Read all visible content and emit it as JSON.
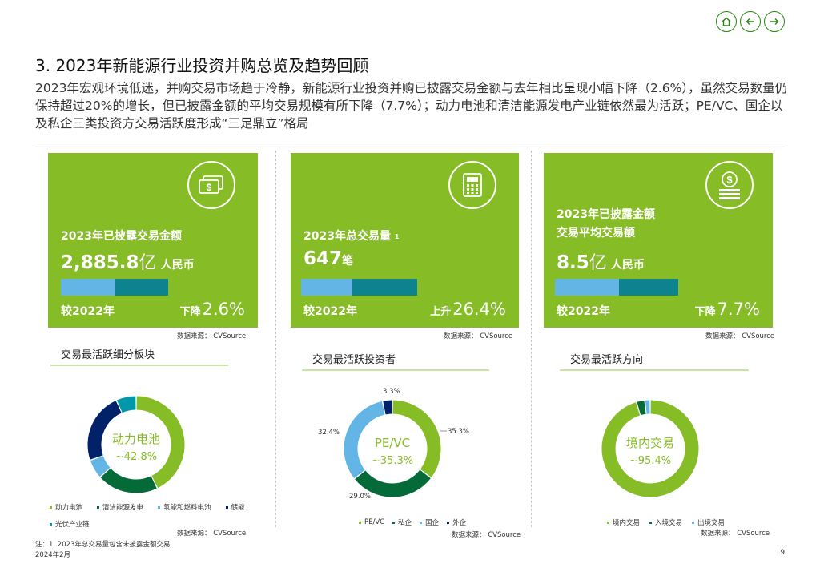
{
  "colors": {
    "green": "#86bc25",
    "dark_green": "#26890d",
    "darker_green": "#046a38",
    "light_blue": "#62b5e5",
    "teal": "#0d8390",
    "navy": "#012169",
    "bar_teal": "#0097a9"
  },
  "nav": {
    "home_icon": "home-icon",
    "back_icon": "arrow-left-icon",
    "forward_icon": "arrow-right-icon"
  },
  "page": {
    "title": "3. 2023年新能源行业投资并购总览及趋势回顾",
    "summary": "2023年宏观环境低迷，并购交易市场趋于冷静，新能源行业投资并购已披露交易金额与去年相比呈现小幅下降（2.6%），虽然交易数量仍保持超过20%的增长，但已披露金额的平均交易规模有所下降（7.7%）；动力电池和清洁能源发电产业链依然最为活跃；PE/VC、国企以及私企三类投资方交易活跃度形成“三足鼎立”格局"
  },
  "cards": [
    {
      "icon": "cash-icon",
      "label": "2023年已披露交易金额",
      "value": "2,885.8",
      "value_unit": "亿",
      "unit_text": "人民币",
      "compare_label": "较2022年",
      "direction": "下降",
      "pct": "2.6%",
      "change_pct": -2.6,
      "source": "数据来源： CVSource"
    },
    {
      "icon": "calculator-icon",
      "label": "2023年总交易量",
      "sup": "1",
      "value": "647",
      "unit_small": "笔",
      "compare_label": "较2022年",
      "direction": "上升",
      "pct": "26.4%",
      "change_pct": 26.4,
      "source": "数据来源： CVSource"
    },
    {
      "icon": "coin-stack-icon",
      "label_line1": "2023年已披露金额",
      "label_line2": "交易平均交易额",
      "value": "8.5",
      "value_unit": "亿",
      "unit_text": "人民币",
      "compare_label": "较2022年",
      "direction": "下降",
      "pct": "7.7%",
      "change_pct": -7.7,
      "source": "数据来源： CVSource"
    }
  ],
  "panels": [
    {
      "title": "交易最活跃细分板块",
      "center_label": "动力电池",
      "center_value": "~42.8%",
      "legend": [
        "动力电池",
        "清洁能源发电",
        "氢能和燃料电池",
        "储能",
        "光伏产业链"
      ],
      "source": "数据来源： CVSource"
    },
    {
      "title": "交易最活跃投资者",
      "center_label": "PE/VC",
      "center_value": "~35.3%",
      "labels": [
        "3.3%",
        "35.3%",
        "29.0%",
        "32.4%"
      ],
      "legend": [
        "PE/VC",
        "私企",
        "国企",
        "外企"
      ],
      "source": "数据来源： CVSource"
    },
    {
      "title": "交易最活跃方向",
      "center_label": "境内交易",
      "center_value": "~95.4%",
      "legend": [
        "境内交易",
        "入境交易",
        "出境交易"
      ],
      "source": "数据来源： CVSource"
    }
  ],
  "chart_data": [
    {
      "type": "pie",
      "title": "交易最活跃细分板块",
      "categories": [
        "动力电池",
        "清洁能源发电",
        "氢能和燃料电池",
        "储能",
        "光伏产业链"
      ],
      "values": [
        42.8,
        20.5,
        6.5,
        23.5,
        6.7
      ],
      "colors": [
        "#86bc25",
        "#046a38",
        "#62b5e5",
        "#012169",
        "#0097a9"
      ]
    },
    {
      "type": "pie",
      "title": "交易最活跃投资者",
      "categories": [
        "PE/VC",
        "私企",
        "国企",
        "外企"
      ],
      "values": [
        35.3,
        29.0,
        32.4,
        3.3
      ],
      "colors": [
        "#86bc25",
        "#046a38",
        "#62b5e5",
        "#012169"
      ]
    },
    {
      "type": "pie",
      "title": "交易最活跃方向",
      "categories": [
        "境内交易",
        "入境交易",
        "出境交易"
      ],
      "values": [
        95.4,
        2.8,
        1.8
      ],
      "colors": [
        "#86bc25",
        "#046a38",
        "#62b5e5"
      ]
    }
  ],
  "footer": {
    "note": "注：1. 2023年总交易量包含未披露金额交易",
    "date": "2024年2月",
    "page_number": "9"
  }
}
